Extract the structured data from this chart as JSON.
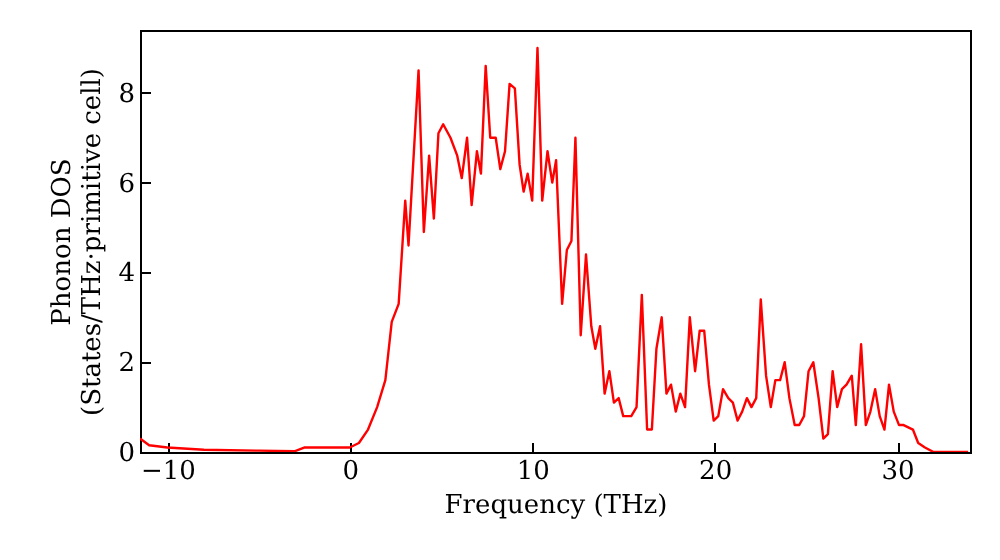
{
  "chart_data": {
    "type": "line",
    "xlabel": "Frequency (THz)",
    "ylabel": "Phonon DOS\n(States/THz·primitive cell)",
    "xlim": [
      -11.5,
      34
    ],
    "ylim": [
      0,
      9.4
    ],
    "xticks": [
      -10,
      0,
      10,
      20,
      30
    ],
    "yticks": [
      0,
      2,
      4,
      6,
      8
    ],
    "grid": false,
    "series": [
      {
        "color": "#ff0000",
        "x": [
          -11.5,
          -11,
          -10,
          -8,
          -5,
          -3,
          -2.5,
          -1,
          0,
          0.5,
          1,
          1.5,
          1.95,
          2.3,
          2.68,
          3.04,
          3.22,
          3.77,
          4.06,
          4.35,
          4.61,
          4.86,
          5.12,
          5.52,
          5.89,
          6.14,
          6.43,
          6.68,
          6.97,
          7.19,
          7.45,
          7.7,
          8.0,
          8.25,
          8.51,
          8.76,
          9.05,
          9.31,
          9.53,
          9.75,
          10.0,
          10.29,
          10.55,
          10.84,
          11.1,
          11.31,
          11.64,
          11.9,
          12.15,
          12.37,
          12.66,
          12.95,
          13.24,
          13.46,
          13.72,
          13.97,
          14.23,
          14.48,
          14.74,
          14.99,
          15.43,
          15.72,
          16.01,
          16.3,
          16.56,
          16.81,
          17.1,
          17.36,
          17.61,
          17.87,
          18.12,
          18.38,
          18.64,
          18.93,
          19.18,
          19.43,
          19.69,
          19.95,
          20.2,
          20.46,
          20.75,
          21.0,
          21.26,
          21.51,
          21.77,
          22.02,
          22.28,
          22.53,
          22.82,
          23.08,
          23.33,
          23.59,
          23.84,
          24.1,
          24.39,
          24.64,
          24.9,
          25.15,
          25.41,
          25.7,
          25.96,
          26.21,
          26.47,
          26.72,
          26.98,
          27.23,
          27.52,
          27.74,
          28.03,
          28.29,
          28.54,
          28.8,
          29.05,
          29.31,
          29.56,
          29.82,
          30.11,
          30.36,
          30.87,
          31.16,
          31.53,
          32.0,
          33.9
        ],
        "values": [
          0.3,
          0.15,
          0.1,
          0.05,
          0.03,
          0.02,
          0.1,
          0.1,
          0.1,
          0.2,
          0.5,
          1.0,
          1.6,
          2.9,
          3.3,
          5.6,
          4.6,
          8.5,
          4.9,
          6.6,
          5.2,
          7.1,
          7.3,
          7.0,
          6.6,
          6.1,
          7.0,
          5.5,
          6.7,
          6.2,
          8.6,
          7.0,
          7.0,
          6.3,
          6.7,
          8.2,
          8.1,
          6.4,
          5.8,
          6.2,
          5.6,
          9.0,
          5.6,
          6.7,
          6.0,
          6.5,
          3.3,
          4.5,
          4.7,
          7.0,
          2.6,
          4.4,
          2.8,
          2.3,
          2.8,
          1.3,
          1.8,
          1.1,
          1.2,
          0.8,
          0.8,
          1.0,
          3.5,
          0.5,
          0.5,
          2.3,
          3.0,
          1.3,
          1.5,
          0.9,
          1.3,
          1.0,
          3.0,
          1.8,
          2.7,
          2.7,
          1.5,
          0.7,
          0.8,
          1.4,
          1.2,
          1.1,
          0.7,
          0.9,
          1.2,
          1.0,
          1.2,
          3.4,
          1.7,
          1.0,
          1.6,
          1.6,
          2.0,
          1.2,
          0.6,
          0.6,
          0.8,
          1.8,
          2.0,
          1.2,
          0.3,
          0.4,
          1.8,
          1.0,
          1.4,
          1.5,
          1.7,
          0.6,
          2.4,
          0.6,
          0.9,
          1.4,
          0.8,
          0.5,
          1.5,
          0.9,
          0.6,
          0.6,
          0.5,
          0.2,
          0.1,
          0.0,
          0.0
        ]
      }
    ]
  }
}
